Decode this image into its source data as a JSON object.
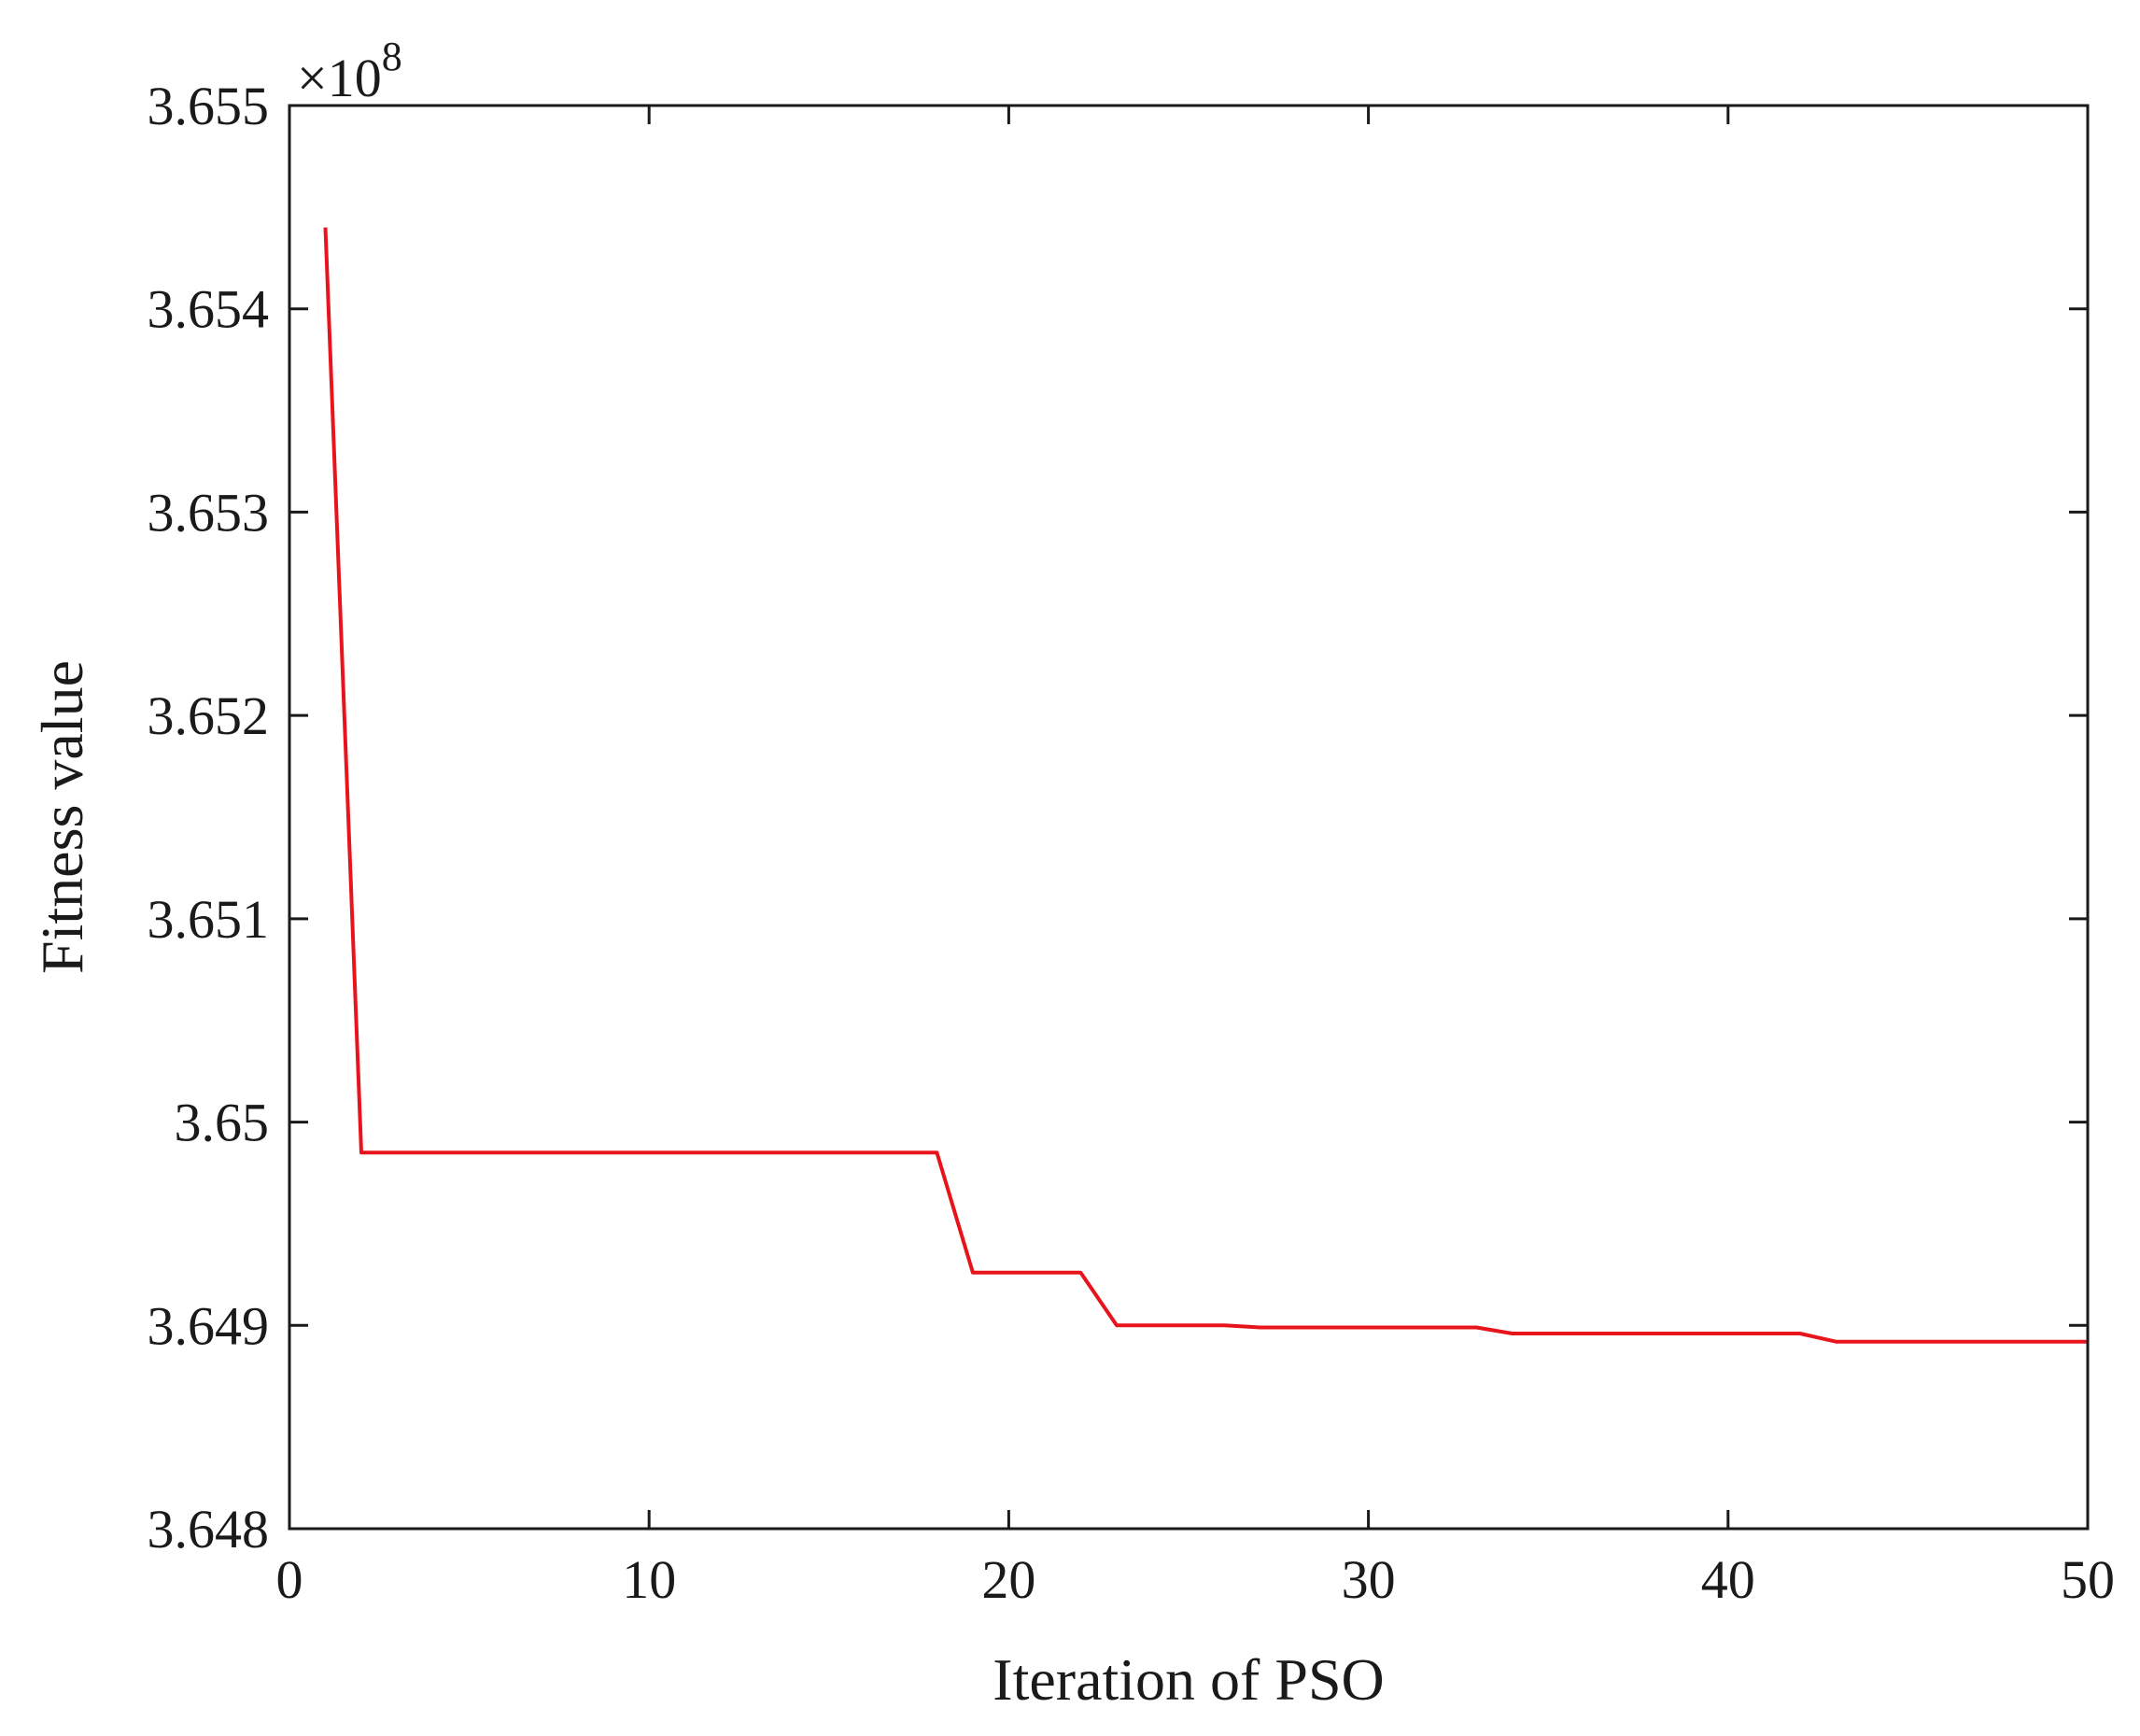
{
  "chart_data": {
    "type": "line",
    "xlabel": "Iteration of PSO",
    "ylabel": "Fitness value",
    "xlim": [
      0,
      50
    ],
    "ylim": [
      3.648,
      3.655
    ],
    "x_ticks": [
      0,
      10,
      20,
      30,
      40,
      50
    ],
    "x_tick_labels": [
      "0",
      "10",
      "20",
      "30",
      "40",
      "50"
    ],
    "y_ticks": [
      3.648,
      3.649,
      3.65,
      3.651,
      3.652,
      3.653,
      3.654,
      3.655
    ],
    "y_tick_labels": [
      "3.648",
      "3.649",
      "3.65",
      "3.651",
      "3.652",
      "3.653",
      "3.654",
      "3.655"
    ],
    "y_multiplier": {
      "prefix": "×10",
      "exponent": "8"
    },
    "grid": false,
    "series": [
      {
        "color": "#e8141c",
        "x": [
          1,
          2,
          18,
          19,
          22,
          23,
          26,
          27,
          33,
          34,
          42,
          43,
          50
        ],
        "y": [
          3.6544,
          3.64985,
          3.64985,
          3.64926,
          3.64926,
          3.649,
          3.649,
          3.64899,
          3.64899,
          3.64896,
          3.64896,
          3.64892,
          3.64892
        ]
      }
    ]
  }
}
